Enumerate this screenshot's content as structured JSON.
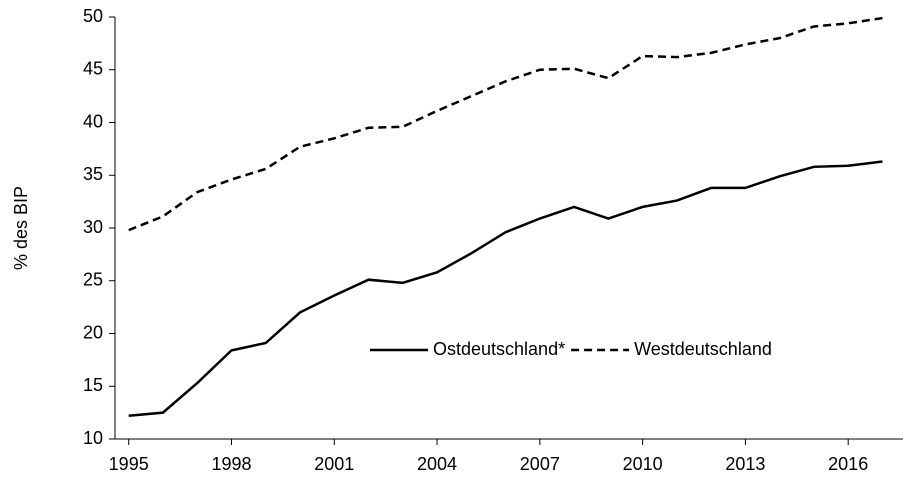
{
  "chart_data": {
    "type": "line",
    "y_label": "% des BIP",
    "x": [
      1995,
      1996,
      1997,
      1998,
      1999,
      2000,
      2001,
      2002,
      2003,
      2004,
      2005,
      2006,
      2007,
      2008,
      2009,
      2010,
      2011,
      2012,
      2013,
      2014,
      2015,
      2016,
      2017
    ],
    "series": [
      {
        "name": "Ostdeutschland*",
        "color": "#000000",
        "linestyle": "solid",
        "values": [
          12.2,
          12.5,
          15.3,
          18.4,
          19.1,
          22.0,
          23.6,
          25.1,
          24.8,
          25.8,
          27.6,
          29.6,
          30.9,
          32.0,
          30.9,
          32.0,
          32.6,
          33.8,
          33.8,
          34.9,
          35.8,
          35.9,
          36.3
        ]
      },
      {
        "name": "Westdeutschland",
        "color": "#000000",
        "linestyle": "dashed",
        "values": [
          29.8,
          31.1,
          33.4,
          34.6,
          35.6,
          37.7,
          38.5,
          39.5,
          39.6,
          41.1,
          42.5,
          43.9,
          45.0,
          45.1,
          44.2,
          46.3,
          46.2,
          46.6,
          47.4,
          48.0,
          49.1,
          49.4,
          49.9
        ]
      }
    ],
    "xlim": [
      1994.6,
      2017.6
    ],
    "xticks": [
      1995,
      1998,
      2001,
      2004,
      2007,
      2010,
      2013,
      2016
    ],
    "ylim": [
      10,
      50
    ],
    "yticks": [
      10,
      15,
      20,
      25,
      30,
      35,
      40,
      45,
      50
    ],
    "grid": false,
    "legend": "lower right"
  }
}
